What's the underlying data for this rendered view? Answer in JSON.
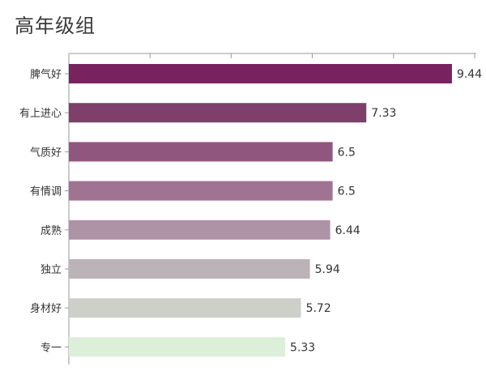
{
  "chart_data": {
    "type": "bar",
    "orientation": "horizontal",
    "title": "高年级组",
    "categories": [
      "脾气好",
      "有上进心",
      "气质好",
      "有情调",
      "成熟",
      "独立",
      "身材好",
      "专一"
    ],
    "values": [
      9.44,
      7.33,
      6.5,
      6.5,
      6.44,
      5.94,
      5.72,
      5.33
    ],
    "value_labels": [
      "9.44",
      "7.33",
      "6.5",
      "6.5",
      "6.44",
      "5.94",
      "5.72",
      "5.33"
    ],
    "xlim": [
      0,
      10
    ],
    "xlabel": "",
    "ylabel": "",
    "grid": false,
    "bar_colors": [
      "#782260",
      "#7e3f6b",
      "#91567e",
      "#a07392",
      "#ae93a6",
      "#bcb3b8",
      "#cdcfc9",
      "#dcefd8"
    ]
  }
}
